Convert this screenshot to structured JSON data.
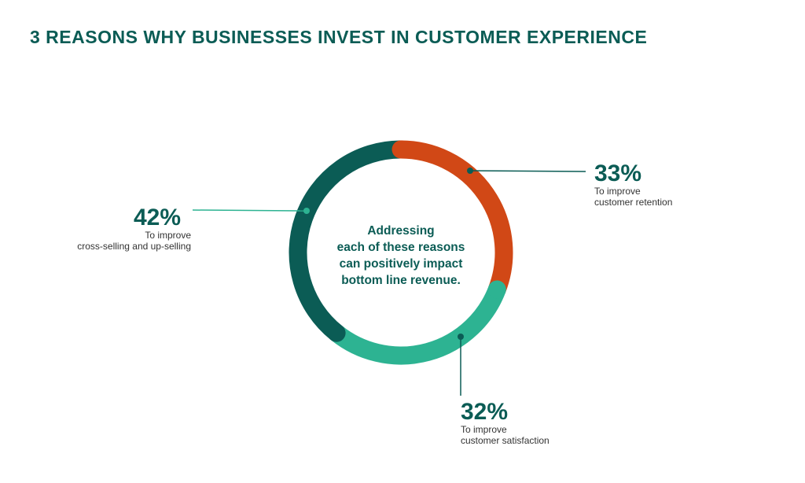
{
  "title": "3 REASONS WHY BUSINESSES INVEST IN CUSTOMER EXPERIENCE",
  "chart_data": {
    "type": "pie",
    "variant": "donut",
    "title": "3 REASONS WHY BUSINESSES INVEST IN CUSTOMER EXPERIENCE",
    "center_text": [
      "Addressing",
      "each of these reasons",
      "can positively impact",
      "bottom line revenue."
    ],
    "slices": [
      {
        "label": "33%",
        "value": 33,
        "desc": [
          "To improve",
          "customer retention"
        ],
        "color": "#d14816"
      },
      {
        "label": "32%",
        "value": 32,
        "desc": [
          "To improve",
          "customer satisfaction"
        ],
        "color": "#2db392"
      },
      {
        "label": "42%",
        "value": 42,
        "desc": [
          "To improve",
          "cross-selling and up-selling"
        ],
        "color": "#0b5c55"
      }
    ]
  }
}
